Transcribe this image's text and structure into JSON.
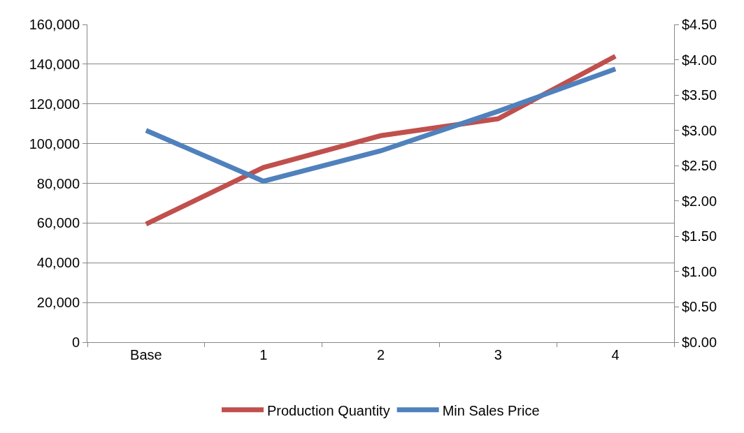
{
  "chart_data": {
    "type": "line",
    "categories": [
      "Base",
      "1",
      "2",
      "3",
      "4"
    ],
    "series": [
      {
        "name": "Production Quantity",
        "color": "#c0504d",
        "values": [
          59500,
          88000,
          104000,
          112500,
          144000
        ]
      },
      {
        "name": "Min Sales Price",
        "color": "#4f81bd",
        "values": [
          3.0,
          2.28,
          2.71,
          3.27,
          3.87
        ],
        "axis": "y2"
      }
    ],
    "ylim": [
      0,
      160000
    ],
    "yticks": [
      {
        "value": 0,
        "label": "0"
      },
      {
        "value": 20000,
        "label": "20,000"
      },
      {
        "value": 40000,
        "label": "40,000"
      },
      {
        "value": 60000,
        "label": "60,000"
      },
      {
        "value": 80000,
        "label": "80,000"
      },
      {
        "value": 100000,
        "label": "100,000"
      },
      {
        "value": 120000,
        "label": "120,000"
      },
      {
        "value": 140000,
        "label": "140,000"
      },
      {
        "value": 160000,
        "label": "160,000"
      }
    ],
    "y2lim": [
      0,
      4.5
    ],
    "y2ticks": [
      {
        "value": 0,
        "label": "$0.00"
      },
      {
        "value": 0.5,
        "label": "$0.50"
      },
      {
        "value": 1,
        "label": "$1.00"
      },
      {
        "value": 1.5,
        "label": "$1.50"
      },
      {
        "value": 2,
        "label": "$2.00"
      },
      {
        "value": 2.5,
        "label": "$2.50"
      },
      {
        "value": 3,
        "label": "$3.00"
      },
      {
        "value": 3.5,
        "label": "$3.50"
      },
      {
        "value": 4,
        "label": "$4.00"
      },
      {
        "value": 4.5,
        "label": "$4.50"
      }
    ],
    "grid": "y",
    "legend": "bottom",
    "marker": "none",
    "line_style": "solid"
  }
}
